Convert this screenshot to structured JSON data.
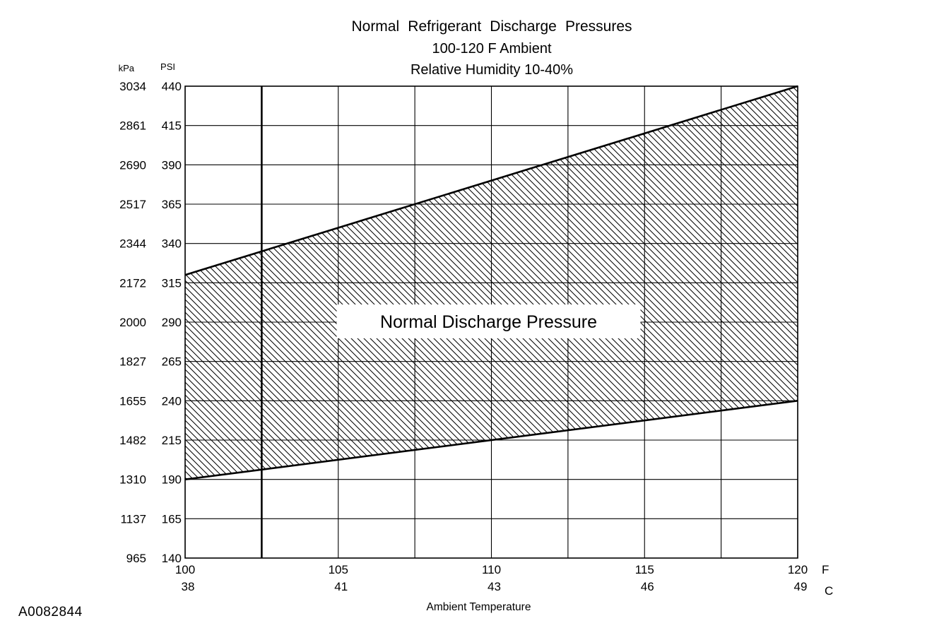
{
  "chart_data": {
    "type": "area",
    "title": "Normal Refrigerant Discharge Pressures",
    "subtitle1": "100-120 F Ambient",
    "subtitle2": "Relative Humidity 10-40%",
    "xlabel": "Ambient Temperature",
    "x_axis_unit_primary": "F",
    "x_axis_unit_secondary": "C",
    "y_axis_unit_left": "kPa",
    "y_axis_unit_right": "PSI",
    "xlim": [
      100,
      120
    ],
    "x_minor_step": 2.5,
    "ylim_psi": [
      140,
      440
    ],
    "y_ticks_psi": [
      440,
      415,
      390,
      365,
      340,
      315,
      290,
      265,
      240,
      215,
      190,
      165,
      140
    ],
    "y_ticks_kpa": [
      3034,
      2861,
      2690,
      2517,
      2344,
      2172,
      2000,
      1827,
      1655,
      1482,
      1310,
      1137,
      965
    ],
    "x_ticks_f": [
      100,
      105,
      110,
      115,
      120
    ],
    "x_ticks_c": [
      38,
      41,
      43,
      46,
      49
    ],
    "grid": true,
    "line_color": "#000000",
    "emphasis_vline_f": 102.5,
    "band": {
      "label": "Normal Discharge Pressure",
      "upper": {
        "x_f": [
          100,
          120
        ],
        "psi": [
          320,
          440
        ]
      },
      "lower": {
        "x_f": [
          100,
          120
        ],
        "psi": [
          190,
          240
        ]
      }
    },
    "figure_code": "A0082844"
  }
}
